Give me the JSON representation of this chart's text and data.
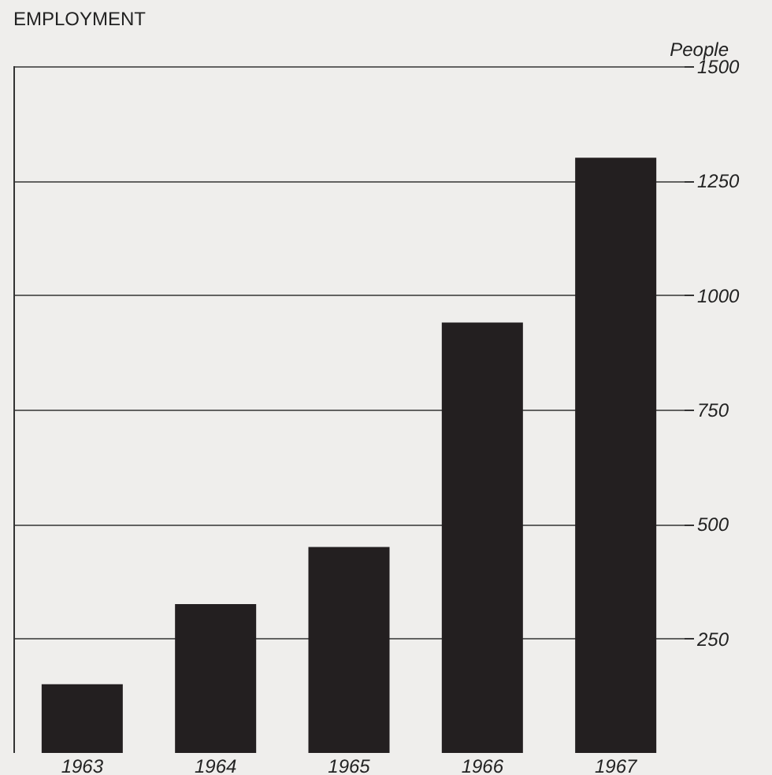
{
  "chart_data": {
    "type": "bar",
    "title": "EMPLOYMENT",
    "ylabel": "People",
    "categories": [
      "1963",
      "1964",
      "1965",
      "1966",
      "1967"
    ],
    "values": [
      150,
      325,
      450,
      940,
      1300
    ],
    "color": "#231f20",
    "ylim": [
      0,
      1500
    ],
    "yticks": [
      250,
      500,
      750,
      1000,
      1250,
      1500
    ],
    "grid": "y"
  }
}
